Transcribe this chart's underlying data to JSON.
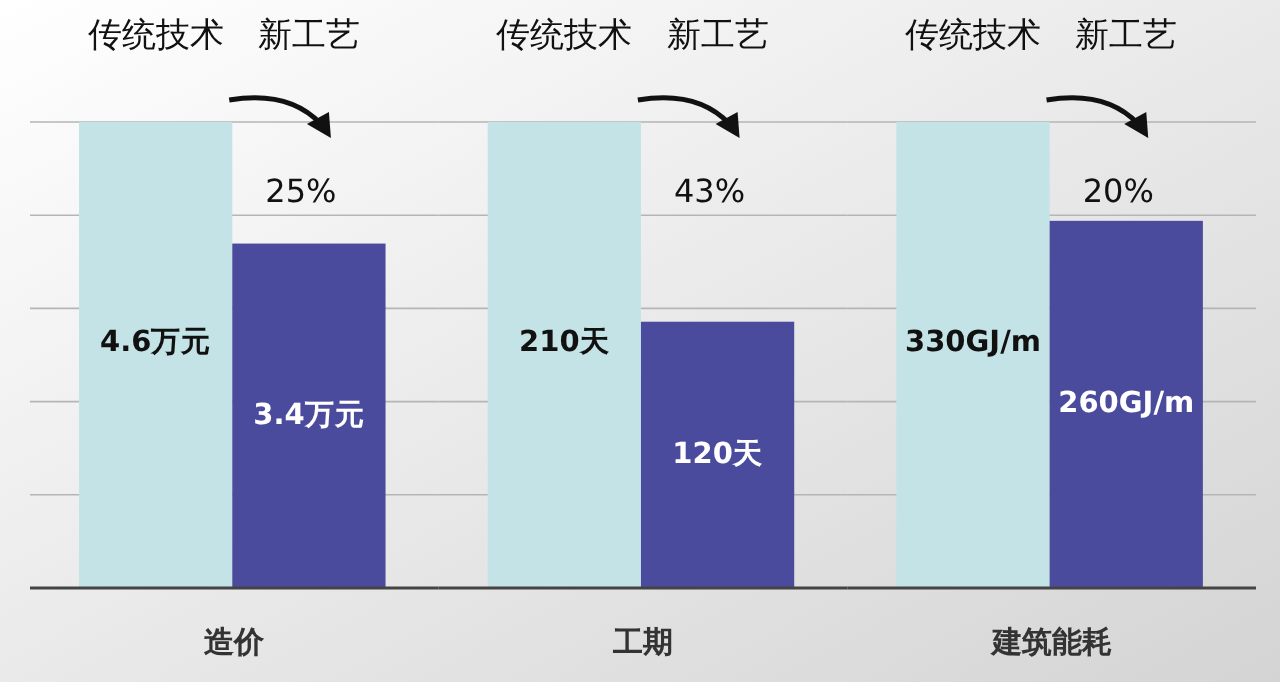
{
  "chart_data": [
    {
      "type": "bar",
      "xlabel": "造价",
      "categories": [
        "传统技术",
        "新工艺"
      ],
      "values": [
        4.6,
        3.4
      ],
      "colors": [
        "#c3e3e6",
        "#4b4b9e"
      ],
      "value_labels": [
        "4.6万元",
        "3.4万元"
      ],
      "grid": true,
      "annotations": [
        "25%"
      ]
    },
    {
      "type": "bar",
      "xlabel": "工期",
      "categories": [
        "传统技术",
        "新工艺"
      ],
      "values": [
        210,
        120
      ],
      "colors": [
        "#c3e3e6",
        "#4b4b9e"
      ],
      "value_labels": [
        "210天",
        "120天"
      ],
      "grid": true,
      "annotations": [
        "43%"
      ]
    },
    {
      "type": "bar",
      "xlabel": "建筑能耗",
      "categories": [
        "传统技术",
        "新工艺"
      ],
      "values": [
        330,
        260
      ],
      "colors": [
        "#c3e3e6",
        "#4b4b9e"
      ],
      "value_labels": [
        "330GJ/m",
        "260GJ/m"
      ],
      "grid": true,
      "annotations": [
        "20%"
      ]
    }
  ]
}
